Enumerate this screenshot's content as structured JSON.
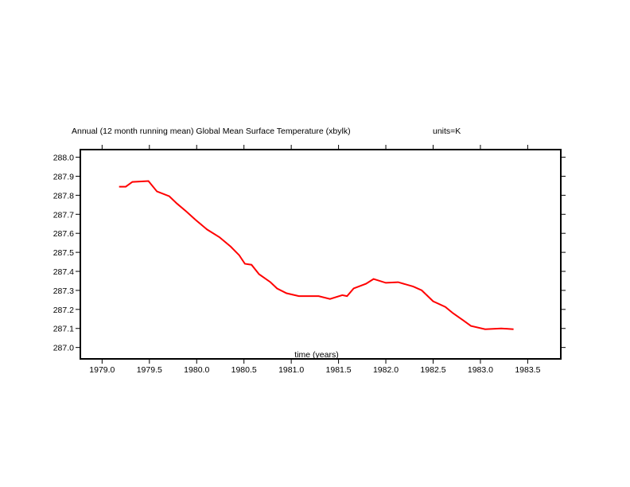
{
  "chart_data": {
    "type": "line",
    "title": "Annual (12 month running mean) Global Mean Surface Temperature (xbylk)",
    "units_label": "units=K",
    "xlabel": "time (years)",
    "ylabel": "",
    "xlim": [
      1978.77,
      1983.85
    ],
    "ylim": [
      286.94,
      288.04
    ],
    "xticks": [
      1979.0,
      1979.5,
      1980.0,
      1980.5,
      1981.0,
      1981.5,
      1982.0,
      1982.5,
      1983.0,
      1983.5
    ],
    "xtick_labels": [
      "1979.0",
      "1979.5",
      "1980.0",
      "1980.5",
      "1981.0",
      "1981.5",
      "1982.0",
      "1982.5",
      "1983.0",
      "1983.5"
    ],
    "yticks": [
      287.0,
      287.1,
      287.2,
      287.3,
      287.4,
      287.5,
      287.6,
      287.7,
      287.8,
      287.9,
      288.0
    ],
    "ytick_labels": [
      "287.0",
      "287.1",
      "287.2",
      "287.3",
      "287.4",
      "287.5",
      "287.6",
      "287.7",
      "287.8",
      "287.9",
      "288.0"
    ],
    "grid": false,
    "series": [
      {
        "color": "#ff0000",
        "x": [
          1979.18,
          1979.25,
          1979.32,
          1979.49,
          1979.58,
          1979.71,
          1979.79,
          1979.89,
          1979.99,
          1980.11,
          1980.24,
          1980.36,
          1980.45,
          1980.51,
          1980.58,
          1980.66,
          1980.78,
          1980.85,
          1980.95,
          1981.08,
          1981.29,
          1981.41,
          1981.54,
          1981.59,
          1981.66,
          1981.79,
          1981.87,
          1982.0,
          1982.13,
          1982.29,
          1982.38,
          1982.5,
          1982.63,
          1982.71,
          1982.82,
          1982.9,
          1983.05,
          1983.22,
          1983.35
        ],
        "y": [
          287.845,
          287.845,
          287.87,
          287.875,
          287.82,
          287.795,
          287.757,
          287.715,
          287.67,
          287.62,
          287.58,
          287.53,
          287.485,
          287.44,
          287.435,
          287.385,
          287.343,
          287.31,
          287.285,
          287.27,
          287.27,
          287.255,
          287.275,
          287.27,
          287.31,
          287.335,
          287.36,
          287.34,
          287.343,
          287.32,
          287.3,
          287.243,
          287.213,
          287.18,
          287.142,
          287.113,
          287.096,
          287.1,
          287.096
        ]
      }
    ]
  }
}
